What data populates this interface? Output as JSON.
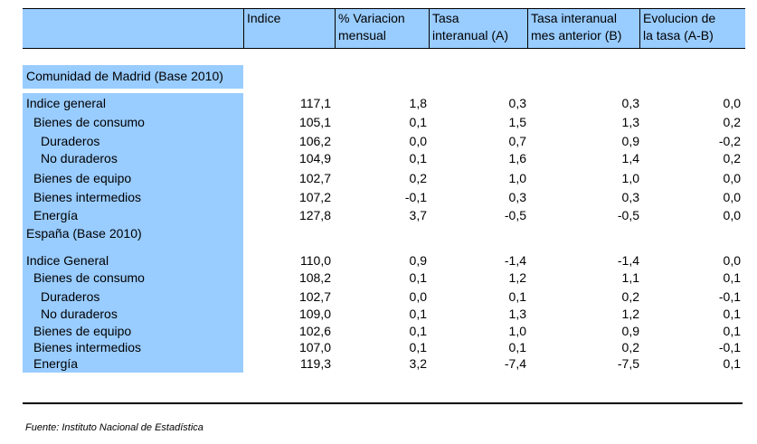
{
  "header": {
    "columns": [
      {
        "lines": [
          "Indice",
          ""
        ]
      },
      {
        "lines": [
          "% Variacion",
          "mensual"
        ]
      },
      {
        "lines": [
          "Tasa",
          "interanual (A)"
        ]
      },
      {
        "lines": [
          "Tasa interanual",
          "mes anterior (B)"
        ]
      },
      {
        "lines": [
          "Evolucion de",
          "la tasa (A-B)"
        ]
      }
    ]
  },
  "sections": [
    {
      "title": "Comunidad de Madrid (Base 2010)",
      "rows": [
        {
          "label": "Indice general",
          "values": [
            "117,1",
            "1,8",
            "0,3",
            "0,3",
            "0,0"
          ]
        },
        {
          "label": "Bienes de consumo",
          "values": [
            "105,1",
            "0,1",
            "1,5",
            "1,3",
            "0,2"
          ]
        },
        {
          "label": "Duraderos",
          "values": [
            "106,2",
            "0,0",
            "0,7",
            "0,9",
            "-0,2"
          ]
        },
        {
          "label": "No duraderos",
          "values": [
            "104,9",
            "0,1",
            "1,6",
            "1,4",
            "0,2"
          ]
        },
        {
          "label": "Bienes de equipo",
          "values": [
            "102,7",
            "0,2",
            "1,0",
            "1,0",
            "0,0"
          ]
        },
        {
          "label": "Bienes intermedios",
          "values": [
            "107,2",
            "-0,1",
            "0,3",
            "0,3",
            "0,0"
          ]
        },
        {
          "label": "Energía",
          "values": [
            "127,8",
            "3,7",
            "-0,5",
            "-0,5",
            "0,0"
          ]
        }
      ]
    },
    {
      "title": "España (Base 2010)",
      "rows": [
        {
          "label": "Indice General",
          "values": [
            "110,0",
            "0,9",
            "-1,4",
            "-1,4",
            "0,0"
          ]
        },
        {
          "label": "Bienes de consumo",
          "values": [
            "108,2",
            "0,1",
            "1,2",
            "1,1",
            "0,1"
          ]
        },
        {
          "label": "Duraderos",
          "values": [
            "102,7",
            "0,0",
            "0,1",
            "0,2",
            "-0,1"
          ]
        },
        {
          "label": "No duraderos",
          "values": [
            "109,0",
            "0,1",
            "1,3",
            "1,2",
            "0,1"
          ]
        },
        {
          "label": "Bienes de equipo",
          "values": [
            "102,6",
            "0,1",
            "1,0",
            "0,9",
            "0,1"
          ]
        },
        {
          "label": "Bienes intermedios",
          "values": [
            "107,0",
            "0,1",
            "0,1",
            "0,2",
            "-0,1"
          ]
        },
        {
          "label": "Energía",
          "values": [
            "119,3",
            "3,2",
            "-7,4",
            "-7,5",
            "0,1"
          ]
        }
      ]
    }
  ],
  "footer": {
    "source": "Fuente: Instituto Nacional de Estadística"
  },
  "colors": {
    "header_bg": "#99ccff",
    "label_bg": "#99ccff"
  }
}
